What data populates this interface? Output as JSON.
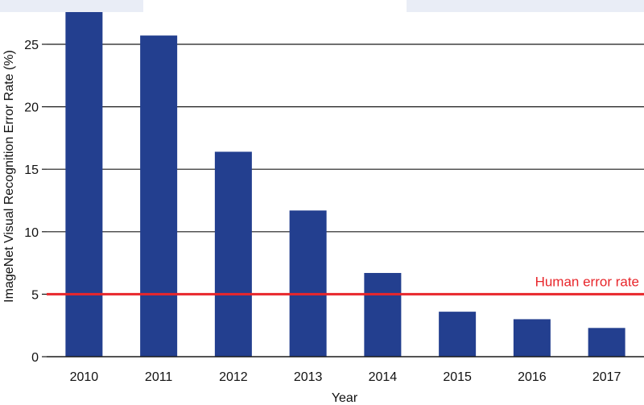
{
  "chart_data": {
    "type": "bar",
    "title": "",
    "xlabel": "Year",
    "ylabel": "ImageNet Visual Recognition Error Rate (%)",
    "categories": [
      "2010",
      "2011",
      "2012",
      "2013",
      "2014",
      "2015",
      "2016",
      "2017"
    ],
    "values": [
      28.2,
      25.7,
      16.4,
      11.7,
      6.7,
      3.6,
      3.0,
      2.3
    ],
    "ylim": [
      0,
      27.5
    ],
    "yticks": [
      0,
      5,
      10,
      15,
      20,
      25
    ],
    "grid": true,
    "reference_line": {
      "value": 5,
      "label": "Human error rate",
      "color": "#e8262b"
    },
    "colors": {
      "bar": "#233f8f",
      "grid": "#1a1a1a",
      "axis": "#1a1a1a"
    }
  }
}
